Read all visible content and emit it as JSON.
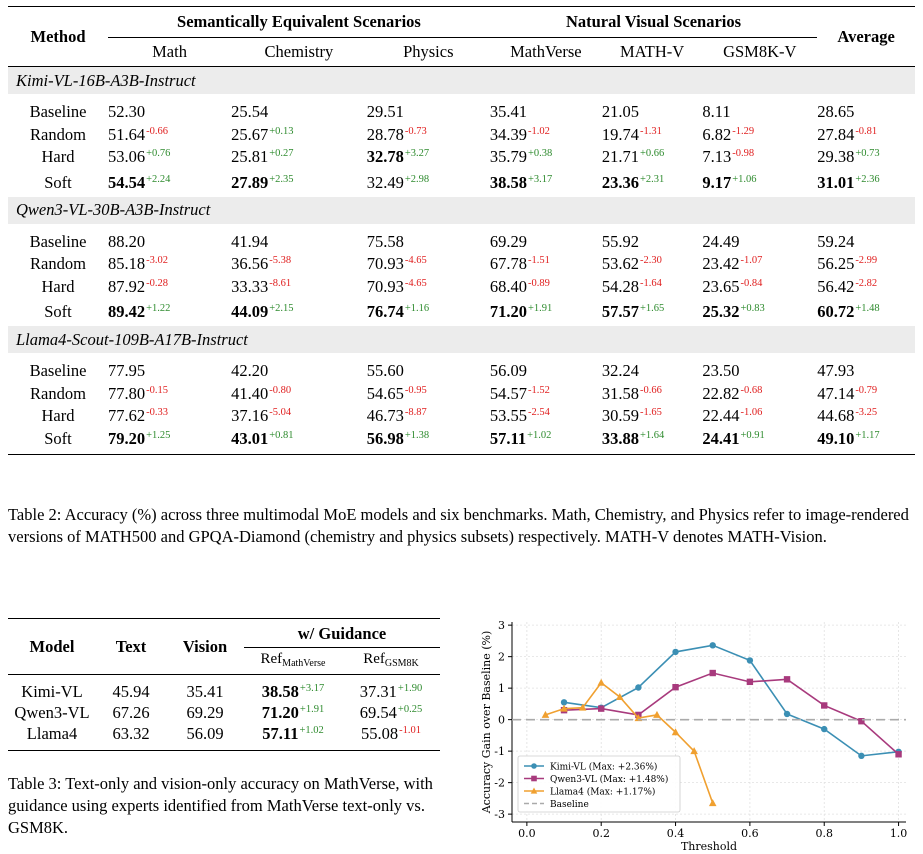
{
  "table2": {
    "header": {
      "method": "Method",
      "group1": "Semantically Equivalent Scenarios",
      "group2": "Natural Visual Scenarios",
      "average": "Average",
      "columns": [
        "Math",
        "Chemistry",
        "Physics",
        "MathVerse",
        "MATH-V",
        "GSM8K-V"
      ]
    },
    "models": [
      {
        "name": "Kimi-VL-16B-A3B-Instruct",
        "rows": [
          {
            "method": "Baseline",
            "cells": [
              {
                "v": "52.30"
              },
              {
                "v": "25.54"
              },
              {
                "v": "29.51"
              },
              {
                "v": "35.41"
              },
              {
                "v": "21.05"
              },
              {
                "v": "8.11"
              },
              {
                "v": "28.65"
              }
            ]
          },
          {
            "method": "Random",
            "cells": [
              {
                "v": "51.64",
                "d": "-0.66",
                "s": "neg"
              },
              {
                "v": "25.67",
                "d": "+0.13",
                "s": "pos"
              },
              {
                "v": "28.78",
                "d": "-0.73",
                "s": "neg"
              },
              {
                "v": "34.39",
                "d": "-1.02",
                "s": "neg"
              },
              {
                "v": "19.74",
                "d": "-1.31",
                "s": "neg"
              },
              {
                "v": "6.82",
                "d": "-1.29",
                "s": "neg"
              },
              {
                "v": "27.84",
                "d": "-0.81",
                "s": "neg"
              }
            ]
          },
          {
            "method": "Hard",
            "cells": [
              {
                "v": "53.06",
                "d": "+0.76",
                "s": "pos"
              },
              {
                "v": "25.81",
                "d": "+0.27",
                "s": "pos"
              },
              {
                "v": "32.78",
                "d": "+3.27",
                "s": "pos",
                "b": true
              },
              {
                "v": "35.79",
                "d": "+0.38",
                "s": "pos"
              },
              {
                "v": "21.71",
                "d": "+0.66",
                "s": "pos"
              },
              {
                "v": "7.13",
                "d": "-0.98",
                "s": "neg"
              },
              {
                "v": "29.38",
                "d": "+0.73",
                "s": "pos"
              }
            ]
          },
          {
            "method": "Soft",
            "cells": [
              {
                "v": "54.54",
                "d": "+2.24",
                "s": "pos",
                "b": true
              },
              {
                "v": "27.89",
                "d": "+2.35",
                "s": "pos",
                "b": true
              },
              {
                "v": "32.49",
                "d": "+2.98",
                "s": "pos"
              },
              {
                "v": "38.58",
                "d": "+3.17",
                "s": "pos",
                "b": true
              },
              {
                "v": "23.36",
                "d": "+2.31",
                "s": "pos",
                "b": true
              },
              {
                "v": "9.17",
                "d": "+1.06",
                "s": "pos",
                "b": true
              },
              {
                "v": "31.01",
                "d": "+2.36",
                "s": "pos",
                "b": true
              }
            ]
          }
        ]
      },
      {
        "name": "Qwen3-VL-30B-A3B-Instruct",
        "rows": [
          {
            "method": "Baseline",
            "cells": [
              {
                "v": "88.20"
              },
              {
                "v": "41.94"
              },
              {
                "v": "75.58"
              },
              {
                "v": "69.29"
              },
              {
                "v": "55.92"
              },
              {
                "v": "24.49"
              },
              {
                "v": "59.24"
              }
            ]
          },
          {
            "method": "Random",
            "cells": [
              {
                "v": "85.18",
                "d": "-3.02",
                "s": "neg"
              },
              {
                "v": "36.56",
                "d": "-5.38",
                "s": "neg"
              },
              {
                "v": "70.93",
                "d": "-4.65",
                "s": "neg"
              },
              {
                "v": "67.78",
                "d": "-1.51",
                "s": "neg"
              },
              {
                "v": "53.62",
                "d": "-2.30",
                "s": "neg"
              },
              {
                "v": "23.42",
                "d": "-1.07",
                "s": "neg"
              },
              {
                "v": "56.25",
                "d": "-2.99",
                "s": "neg"
              }
            ]
          },
          {
            "method": "Hard",
            "cells": [
              {
                "v": "87.92",
                "d": "-0.28",
                "s": "neg"
              },
              {
                "v": "33.33",
                "d": "-8.61",
                "s": "neg"
              },
              {
                "v": "70.93",
                "d": "-4.65",
                "s": "neg"
              },
              {
                "v": "68.40",
                "d": "-0.89",
                "s": "neg"
              },
              {
                "v": "54.28",
                "d": "-1.64",
                "s": "neg"
              },
              {
                "v": "23.65",
                "d": "-0.84",
                "s": "neg"
              },
              {
                "v": "56.42",
                "d": "-2.82",
                "s": "neg"
              }
            ]
          },
          {
            "method": "Soft",
            "cells": [
              {
                "v": "89.42",
                "d": "+1.22",
                "s": "pos",
                "b": true
              },
              {
                "v": "44.09",
                "d": "+2.15",
                "s": "pos",
                "b": true
              },
              {
                "v": "76.74",
                "d": "+1.16",
                "s": "pos",
                "b": true
              },
              {
                "v": "71.20",
                "d": "+1.91",
                "s": "pos",
                "b": true
              },
              {
                "v": "57.57",
                "d": "+1.65",
                "s": "pos",
                "b": true
              },
              {
                "v": "25.32",
                "d": "+0.83",
                "s": "pos",
                "b": true
              },
              {
                "v": "60.72",
                "d": "+1.48",
                "s": "pos",
                "b": true
              }
            ]
          }
        ]
      },
      {
        "name": "Llama4-Scout-109B-A17B-Instruct",
        "rows": [
          {
            "method": "Baseline",
            "cells": [
              {
                "v": "77.95"
              },
              {
                "v": "42.20"
              },
              {
                "v": "55.60"
              },
              {
                "v": "56.09"
              },
              {
                "v": "32.24"
              },
              {
                "v": "23.50"
              },
              {
                "v": "47.93"
              }
            ]
          },
          {
            "method": "Random",
            "cells": [
              {
                "v": "77.80",
                "d": "-0.15",
                "s": "neg"
              },
              {
                "v": "41.40",
                "d": "-0.80",
                "s": "neg"
              },
              {
                "v": "54.65",
                "d": "-0.95",
                "s": "neg"
              },
              {
                "v": "54.57",
                "d": "-1.52",
                "s": "neg"
              },
              {
                "v": "31.58",
                "d": "-0.66",
                "s": "neg"
              },
              {
                "v": "22.82",
                "d": "-0.68",
                "s": "neg"
              },
              {
                "v": "47.14",
                "d": "-0.79",
                "s": "neg"
              }
            ]
          },
          {
            "method": "Hard",
            "cells": [
              {
                "v": "77.62",
                "d": "-0.33",
                "s": "neg"
              },
              {
                "v": "37.16",
                "d": "-5.04",
                "s": "neg"
              },
              {
                "v": "46.73",
                "d": "-8.87",
                "s": "neg"
              },
              {
                "v": "53.55",
                "d": "-2.54",
                "s": "neg"
              },
              {
                "v": "30.59",
                "d": "-1.65",
                "s": "neg"
              },
              {
                "v": "22.44",
                "d": "-1.06",
                "s": "neg"
              },
              {
                "v": "44.68",
                "d": "-3.25",
                "s": "neg"
              }
            ]
          },
          {
            "method": "Soft",
            "cells": [
              {
                "v": "79.20",
                "d": "+1.25",
                "s": "pos",
                "b": true
              },
              {
                "v": "43.01",
                "d": "+0.81",
                "s": "pos",
                "b": true
              },
              {
                "v": "56.98",
                "d": "+1.38",
                "s": "pos",
                "b": true
              },
              {
                "v": "57.11",
                "d": "+1.02",
                "s": "pos",
                "b": true
              },
              {
                "v": "33.88",
                "d": "+1.64",
                "s": "pos",
                "b": true
              },
              {
                "v": "24.41",
                "d": "+0.91",
                "s": "pos",
                "b": true
              },
              {
                "v": "49.10",
                "d": "+1.17",
                "s": "pos",
                "b": true
              }
            ]
          }
        ]
      }
    ],
    "caption": "Table 2: Accuracy (%) across three multimodal MoE models and six benchmarks. Math, Chemistry, and Physics refer to image-rendered versions of MATH500 and GPQA-Diamond (chemistry and physics subsets) respectively. MATH-V denotes MATH-Vision."
  },
  "table3": {
    "header": {
      "model": "Model",
      "text": "Text",
      "vision": "Vision",
      "guidance": "w/ Guidance",
      "ref1_main": "Ref",
      "ref1_sub": "MathVerse",
      "ref2_main": "Ref",
      "ref2_sub": "GSM8K"
    },
    "rows": [
      {
        "model": "Kimi-VL",
        "text": "45.94",
        "vision": "35.41",
        "ref1": {
          "v": "38.58",
          "d": "+3.17",
          "b": true
        },
        "ref2": {
          "v": "37.31",
          "d": "+1.90"
        }
      },
      {
        "model": "Qwen3-VL",
        "text": "67.26",
        "vision": "69.29",
        "ref1": {
          "v": "71.20",
          "d": "+1.91",
          "b": true
        },
        "ref2": {
          "v": "69.54",
          "d": "+0.25"
        }
      },
      {
        "model": "Llama4",
        "text": "63.32",
        "vision": "56.09",
        "ref1": {
          "v": "57.11",
          "d": "+1.02",
          "b": true
        },
        "ref2": {
          "v": "55.08",
          "d": "-1.01"
        }
      }
    ],
    "caption": "Table 3: Text-only and vision-only accuracy on MathVerse, with guidance using experts identified from MathVerse text-only vs. GSM8K."
  },
  "chart_data": {
    "type": "line",
    "title": "",
    "xlabel": "Threshold",
    "ylabel": "Accuracy Gain over Baseline (%)",
    "xlim": [
      -0.04,
      1.02
    ],
    "ylim": [
      -3.25,
      3.1
    ],
    "xticks": [
      0.0,
      0.2,
      0.4,
      0.6,
      0.8,
      1.0
    ],
    "xtick_labels": [
      "0.0",
      "0.2",
      "0.4",
      "0.6",
      "0.8",
      "1.0"
    ],
    "yticks": [
      -3,
      -2,
      -1,
      0,
      1,
      2,
      3
    ],
    "ytick_labels": [
      "-3",
      "-2",
      "-1",
      "0",
      "1",
      "2",
      "3"
    ],
    "grid": true,
    "legend_position": "bottom-left",
    "series": [
      {
        "name": "Kimi-VL (Max: +2.36%)",
        "color": "#3b8fb4",
        "marker": "circle",
        "x": [
          0.1,
          0.2,
          0.3,
          0.4,
          0.5,
          0.6,
          0.7,
          0.8,
          0.9,
          1.0
        ],
        "y": [
          0.55,
          0.38,
          1.02,
          2.15,
          2.36,
          1.88,
          0.18,
          -0.3,
          -1.15,
          -1.02
        ]
      },
      {
        "name": "Qwen3-VL (Max: +1.48%)",
        "color": "#a83a7d",
        "marker": "square",
        "x": [
          0.1,
          0.2,
          0.3,
          0.4,
          0.5,
          0.6,
          0.7,
          0.8,
          0.9,
          1.0
        ],
        "y": [
          0.3,
          0.35,
          0.15,
          1.03,
          1.48,
          1.2,
          1.28,
          0.45,
          -0.05,
          -1.1
        ]
      },
      {
        "name": "Llama4 (Max: +1.17%)",
        "color": "#f0a030",
        "marker": "triangle",
        "x": [
          0.05,
          0.1,
          0.15,
          0.2,
          0.25,
          0.3,
          0.35,
          0.4,
          0.45,
          0.5
        ],
        "y": [
          0.15,
          0.35,
          0.38,
          1.17,
          0.72,
          0.05,
          0.15,
          -0.4,
          -1.0,
          -2.65
        ]
      },
      {
        "name": "Baseline",
        "color": "#aaaaaa",
        "style": "dashed",
        "x": [
          -0.04,
          1.02
        ],
        "y": [
          0,
          0
        ]
      }
    ]
  }
}
